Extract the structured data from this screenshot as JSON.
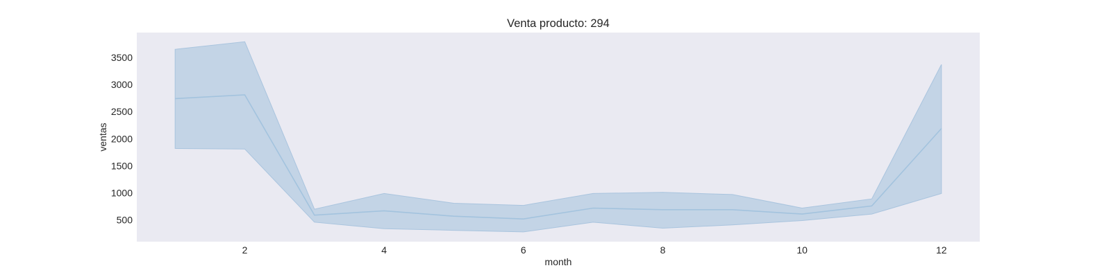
{
  "chart_data": {
    "type": "line",
    "title": "Venta producto: 294",
    "xlabel": "month",
    "ylabel": "ventas",
    "x": [
      1,
      2,
      3,
      4,
      5,
      6,
      7,
      8,
      9,
      10,
      11,
      12
    ],
    "xlim": [
      0.45,
      12.55
    ],
    "ylim": [
      100,
      3960
    ],
    "x_ticks": [
      2,
      4,
      6,
      8,
      10,
      12
    ],
    "y_ticks": [
      500,
      1000,
      1500,
      2000,
      2500,
      3000,
      3500
    ],
    "grid": false,
    "series": [
      {
        "values": [
          2740,
          2810,
          590,
          670,
          570,
          520,
          720,
          690,
          690,
          610,
          760,
          2190
        ],
        "ci_lower": [
          1820,
          1810,
          460,
          340,
          310,
          280,
          460,
          350,
          410,
          490,
          610,
          990
        ],
        "ci_upper": [
          3650,
          3790,
          700,
          990,
          810,
          770,
          990,
          1010,
          970,
          720,
          890,
          3370
        ],
        "color": "#a3c3de",
        "band_color": "#a9c4de"
      }
    ],
    "background_color": "#eaeaf2"
  }
}
